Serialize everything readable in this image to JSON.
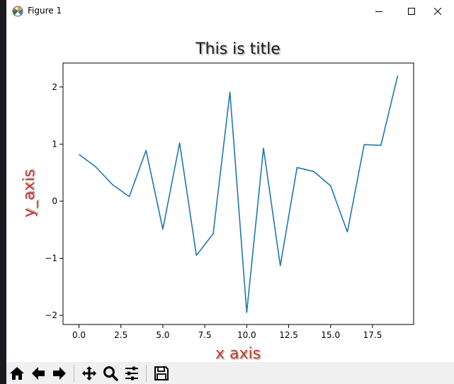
{
  "window": {
    "title": "Figure 1",
    "icons": {
      "app": "matplotlib-icon",
      "minimize": "minimize-icon",
      "maximize": "maximize-icon",
      "close": "close-icon"
    }
  },
  "toolbar": {
    "buttons": [
      {
        "name": "home-icon"
      },
      {
        "name": "back-arrow-icon"
      },
      {
        "name": "forward-arrow-icon"
      },
      {
        "name": "pan-icon"
      },
      {
        "name": "zoom-icon"
      },
      {
        "name": "configure-subplots-icon"
      },
      {
        "name": "save-icon"
      }
    ]
  },
  "chart_data": {
    "type": "line",
    "title": "This is title",
    "xlabel": "x axis",
    "ylabel": "y_axis",
    "xlim": [
      -0.95,
      19.95
    ],
    "ylim": [
      -2.16,
      2.42
    ],
    "xticks": [
      0.0,
      2.5,
      5.0,
      7.5,
      10.0,
      12.5,
      15.0,
      17.5
    ],
    "xtick_labels": [
      "0.0",
      "2.5",
      "5.0",
      "7.5",
      "10.0",
      "12.5",
      "15.0",
      "17.5"
    ],
    "yticks": [
      -2,
      -1,
      0,
      1,
      2
    ],
    "ytick_labels": [
      "−2",
      "−1",
      "0",
      "1",
      "2"
    ],
    "grid": false,
    "colors": {
      "line": "#1f77b4",
      "label": "#c0392b",
      "title": "#1a1a1a"
    },
    "series": [
      {
        "x": [
          0,
          1,
          2,
          3,
          4,
          5,
          6,
          7,
          8,
          9,
          10,
          11,
          12,
          13,
          14,
          15,
          16,
          17,
          18,
          19
        ],
        "values": [
          0.82,
          0.6,
          0.29,
          0.08,
          0.89,
          -0.49,
          1.02,
          -0.95,
          -0.57,
          1.91,
          -1.95,
          0.93,
          -1.13,
          0.59,
          0.52,
          0.27,
          -0.54,
          0.99,
          0.98,
          2.2
        ]
      }
    ]
  }
}
